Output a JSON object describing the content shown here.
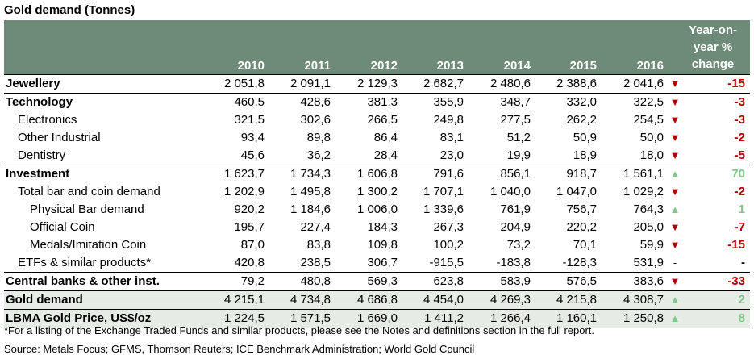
{
  "title": "Gold demand (Tonnes)",
  "years": [
    "2010",
    "2011",
    "2012",
    "2013",
    "2014",
    "2015",
    "2016"
  ],
  "yoy_header": [
    "Year-on-",
    "year %",
    "change"
  ],
  "colors": {
    "header": "#6e8a78",
    "band": "#e6ebe6",
    "up": "#7fc78a",
    "down": "#b20000"
  },
  "rows": [
    {
      "label": "Jewellery",
      "bold": true,
      "indent": 0,
      "values": [
        "2 051,8",
        "2 091,1",
        "2 129,3",
        "2 682,7",
        "2 480,6",
        "2 388,6",
        "2 041,6"
      ],
      "trend": "down",
      "change": "-15"
    },
    {
      "label": "Technology",
      "bold": true,
      "indent": 0,
      "values": [
        "460,5",
        "428,6",
        "381,3",
        "355,9",
        "348,7",
        "332,0",
        "322,5"
      ],
      "trend": "down",
      "change": "-3"
    },
    {
      "label": "Electronics",
      "bold": false,
      "indent": 1,
      "values": [
        "321,5",
        "302,6",
        "266,5",
        "249,8",
        "277,5",
        "262,2",
        "254,5"
      ],
      "trend": "down",
      "change": "-3"
    },
    {
      "label": "Other Industrial",
      "bold": false,
      "indent": 1,
      "values": [
        "93,4",
        "89,8",
        "86,4",
        "83,1",
        "51,2",
        "50,9",
        "50,0"
      ],
      "trend": "down",
      "change": "-2"
    },
    {
      "label": "Dentistry",
      "bold": false,
      "indent": 1,
      "values": [
        "45,6",
        "36,2",
        "28,4",
        "23,0",
        "19,9",
        "18,9",
        "18,0"
      ],
      "trend": "down",
      "change": "-5"
    },
    {
      "label": "Investment",
      "bold": true,
      "indent": 0,
      "values": [
        "1 623,7",
        "1 734,3",
        "1 606,8",
        "791,6",
        "856,1",
        "918,7",
        "1 561,1"
      ],
      "trend": "up",
      "change": "70"
    },
    {
      "label": "Total bar and coin demand",
      "bold": false,
      "indent": 1,
      "values": [
        "1 202,9",
        "1 495,8",
        "1 300,2",
        "1 707,1",
        "1 040,0",
        "1 047,0",
        "1 029,2"
      ],
      "trend": "down",
      "change": "-2"
    },
    {
      "label": "Physical Bar demand",
      "bold": false,
      "indent": 2,
      "values": [
        "920,2",
        "1 184,6",
        "1 006,0",
        "1 339,6",
        "761,9",
        "756,7",
        "764,3"
      ],
      "trend": "up",
      "change": "1"
    },
    {
      "label": "Official Coin",
      "bold": false,
      "indent": 2,
      "values": [
        "195,7",
        "227,4",
        "184,3",
        "267,3",
        "204,9",
        "220,2",
        "205,0"
      ],
      "trend": "down",
      "change": "-7"
    },
    {
      "label": "Medals/Imitation Coin",
      "bold": false,
      "indent": 2,
      "values": [
        "87,0",
        "83,8",
        "109,8",
        "100,2",
        "73,2",
        "70,1",
        "59,9"
      ],
      "trend": "down",
      "change": "-15"
    },
    {
      "label": "ETFs & similar products*",
      "bold": false,
      "indent": 1,
      "values": [
        "420,8",
        "238,5",
        "306,7",
        "-915,5",
        "-183,8",
        "-128,3",
        "531,9"
      ],
      "trend": "none",
      "arrow_text": "-",
      "change": "-"
    },
    {
      "label": "Central banks & other inst.",
      "bold": true,
      "indent": 0,
      "values": [
        "79,2",
        "480,8",
        "569,3",
        "623,8",
        "583,9",
        "576,5",
        "383,6"
      ],
      "trend": "down",
      "change": "-33"
    },
    {
      "label": "Gold demand",
      "bold": true,
      "indent": 0,
      "values": [
        "4 215,1",
        "4 734,8",
        "4 686,8",
        "4 454,0",
        "4 269,3",
        "4 215,8",
        "4 308,7"
      ],
      "trend": "up",
      "change": "2"
    },
    {
      "label": "LBMA Gold Price, US$/oz",
      "bold": true,
      "indent": 0,
      "values": [
        "1 224,5",
        "1 571,5",
        "1 669,0",
        "1 411,2",
        "1 266,4",
        "1 160,1",
        "1 250,8"
      ],
      "trend": "up",
      "change": "8"
    }
  ],
  "footnote": "*For a listing of the Exchange Traded Funds and similar products, please see the Notes and definitions section in the full report.",
  "source": "Source: Metals Focus; GFMS, Thomson Reuters; ICE Benchmark Administration; World Gold Council"
}
